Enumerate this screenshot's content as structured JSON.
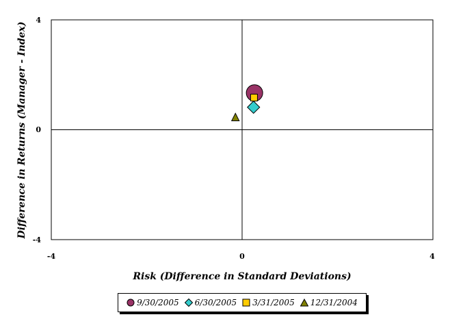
{
  "chart_data": {
    "type": "scatter",
    "title": "",
    "xlabel": "Risk (Difference in Standard Deviations)",
    "ylabel": "Difference in Returns (Manager - Index)",
    "xlim": [
      -4,
      4
    ],
    "ylim": [
      -4,
      4
    ],
    "x_ticks": [
      "-4",
      "0",
      "4"
    ],
    "y_ticks": [
      "4",
      "0",
      "-4"
    ],
    "grid": false,
    "legend_position": "bottom",
    "series": [
      {
        "name": "9/30/2005",
        "marker": "circle",
        "color": "#993366",
        "points": [
          {
            "x": 0.26,
            "y": 1.34
          }
        ]
      },
      {
        "name": "6/30/2005",
        "marker": "diamond",
        "color": "#33CCCC",
        "points": [
          {
            "x": 0.24,
            "y": 0.82
          }
        ]
      },
      {
        "name": "3/31/2005",
        "marker": "square",
        "color": "#FFCC00",
        "points": [
          {
            "x": 0.25,
            "y": 1.17
          }
        ]
      },
      {
        "name": "12/31/2004",
        "marker": "triangle",
        "color": "#808000",
        "points": [
          {
            "x": -0.14,
            "y": 0.45
          }
        ]
      }
    ]
  }
}
